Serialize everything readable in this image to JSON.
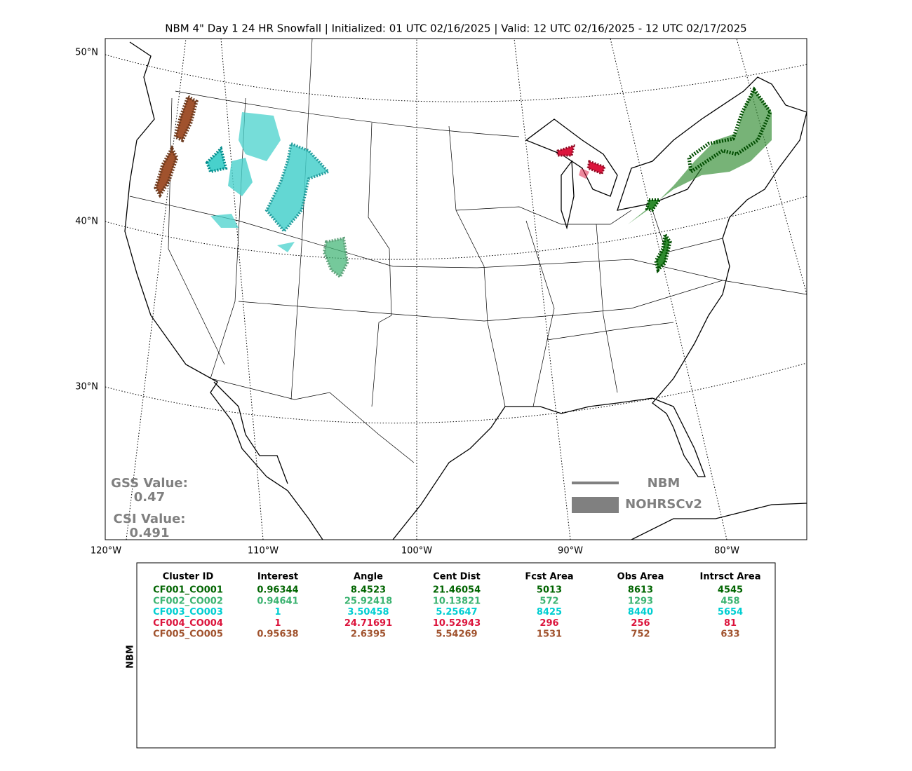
{
  "map": {
    "title": "NBM 4\" Day 1 24 HR Snowfall | Initialized: 01 UTC 02/16/2025 | Valid: 12 UTC 02/16/2025 - 12 UTC 02/17/2025",
    "lat_labels": [
      "50°N",
      "40°N",
      "30°N"
    ],
    "lon_labels": [
      "120°W",
      "110°W",
      "100°W",
      "90°W",
      "80°W"
    ],
    "scores": {
      "gss_label": "GSS Value:",
      "gss_value": "0.47",
      "csi_label": "CSI Value:",
      "csi_value": "0.491"
    },
    "legend": [
      "NBM",
      "NOHRSCv2"
    ]
  },
  "table": {
    "side_label": "NBM",
    "headers": [
      "Cluster ID",
      "Interest",
      "Angle",
      "Cent Dist",
      "Fcst Area",
      "Obs Area",
      "Intrsct Area"
    ],
    "row_colors": [
      "#006400",
      "#3cb371",
      "#00ced1",
      "#dc143c",
      "#a0522d"
    ],
    "rows": [
      [
        "CF001_CO001",
        "0.96344",
        "8.4523",
        "21.46054",
        "5013",
        "8613",
        "4545"
      ],
      [
        "CF002_CO002",
        "0.94641",
        "25.92418",
        "10.13821",
        "572",
        "1293",
        "458"
      ],
      [
        "CF003_CO003",
        "1",
        "3.50458",
        "5.25647",
        "8425",
        "8440",
        "5654"
      ],
      [
        "CF004_CO004",
        "1",
        "24.71691",
        "10.52943",
        "296",
        "256",
        "81"
      ],
      [
        "CF005_CO005",
        "0.95638",
        "2.6395",
        "5.54269",
        "1531",
        "752",
        "633"
      ]
    ]
  }
}
